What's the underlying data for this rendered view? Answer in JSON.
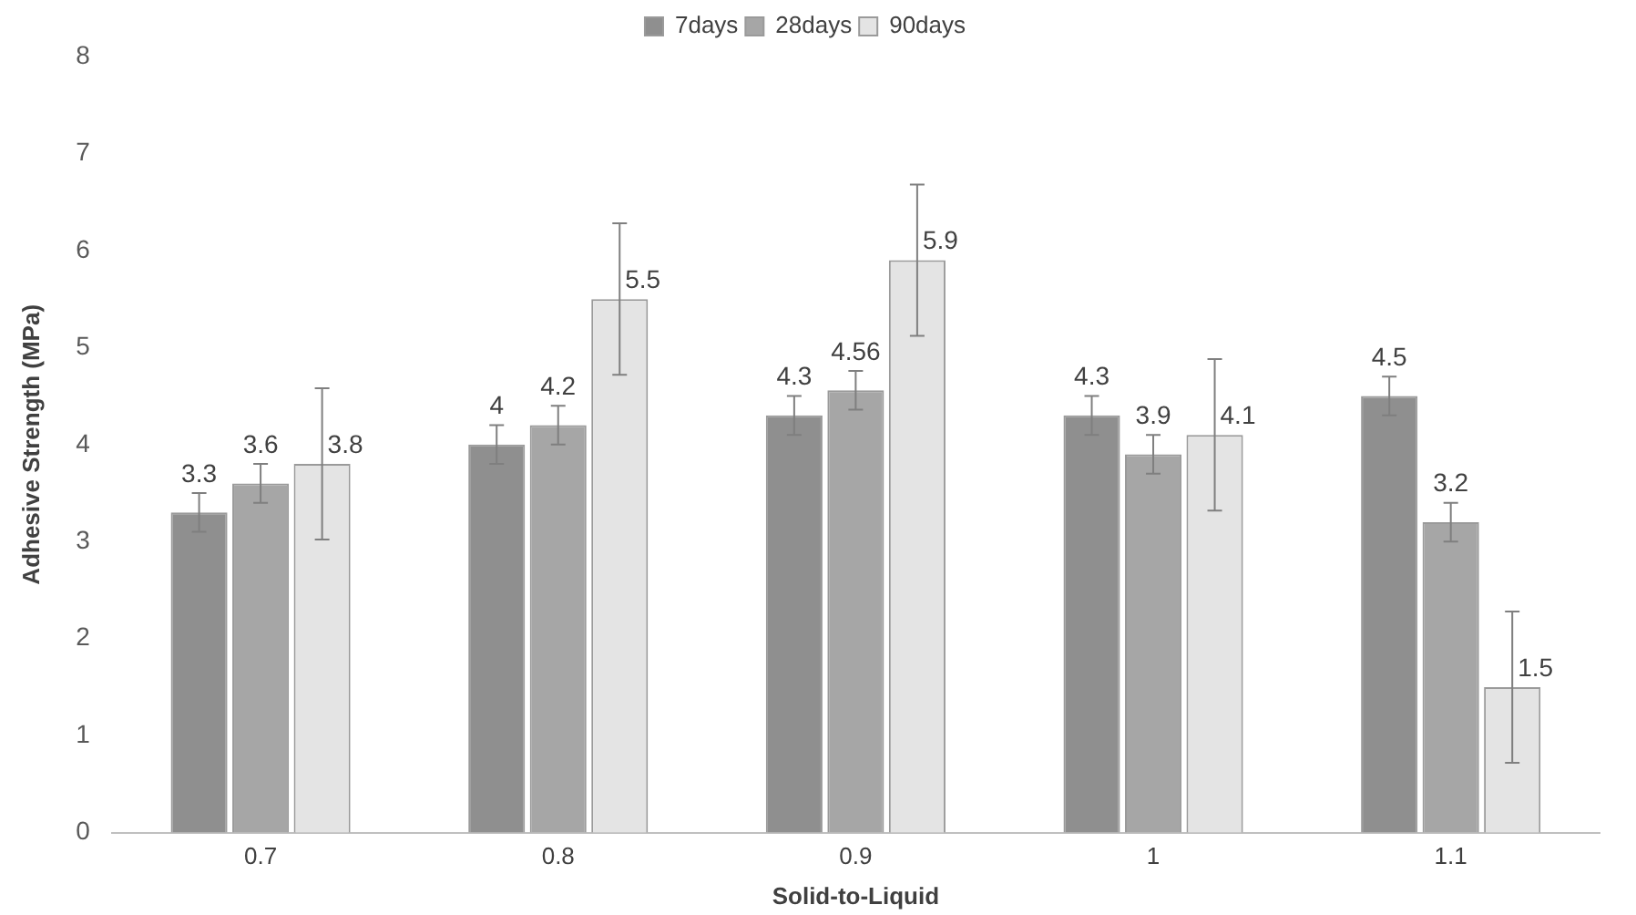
{
  "chart_data": {
    "type": "bar",
    "xlabel": "Solid-to-Liquid",
    "ylabel": "Adhesive Strength (MPa)",
    "categories": [
      "0.7",
      "0.8",
      "0.9",
      "1",
      "1.1"
    ],
    "series": [
      {
        "name": "7days",
        "color": "#8f8f8f",
        "values": [
          3.3,
          4,
          4.3,
          4.3,
          4.5
        ],
        "errors": [
          0.2,
          0.2,
          0.2,
          0.2,
          0.2
        ]
      },
      {
        "name": "28days",
        "color": "#a6a6a6",
        "values": [
          3.6,
          4.2,
          4.56,
          3.9,
          3.2
        ],
        "errors": [
          0.2,
          0.2,
          0.2,
          0.2,
          0.2
        ]
      },
      {
        "name": "90days",
        "color": "#e4e4e4",
        "values": [
          3.8,
          5.5,
          5.9,
          4.1,
          1.5
        ],
        "errors": [
          0.78,
          0.78,
          0.78,
          0.78,
          0.78
        ]
      }
    ],
    "ylim": [
      0,
      8
    ],
    "yticks": [
      0,
      1,
      2,
      3,
      4,
      5,
      6,
      7,
      8
    ],
    "grid": false,
    "legend": "top",
    "data_labels": true
  }
}
